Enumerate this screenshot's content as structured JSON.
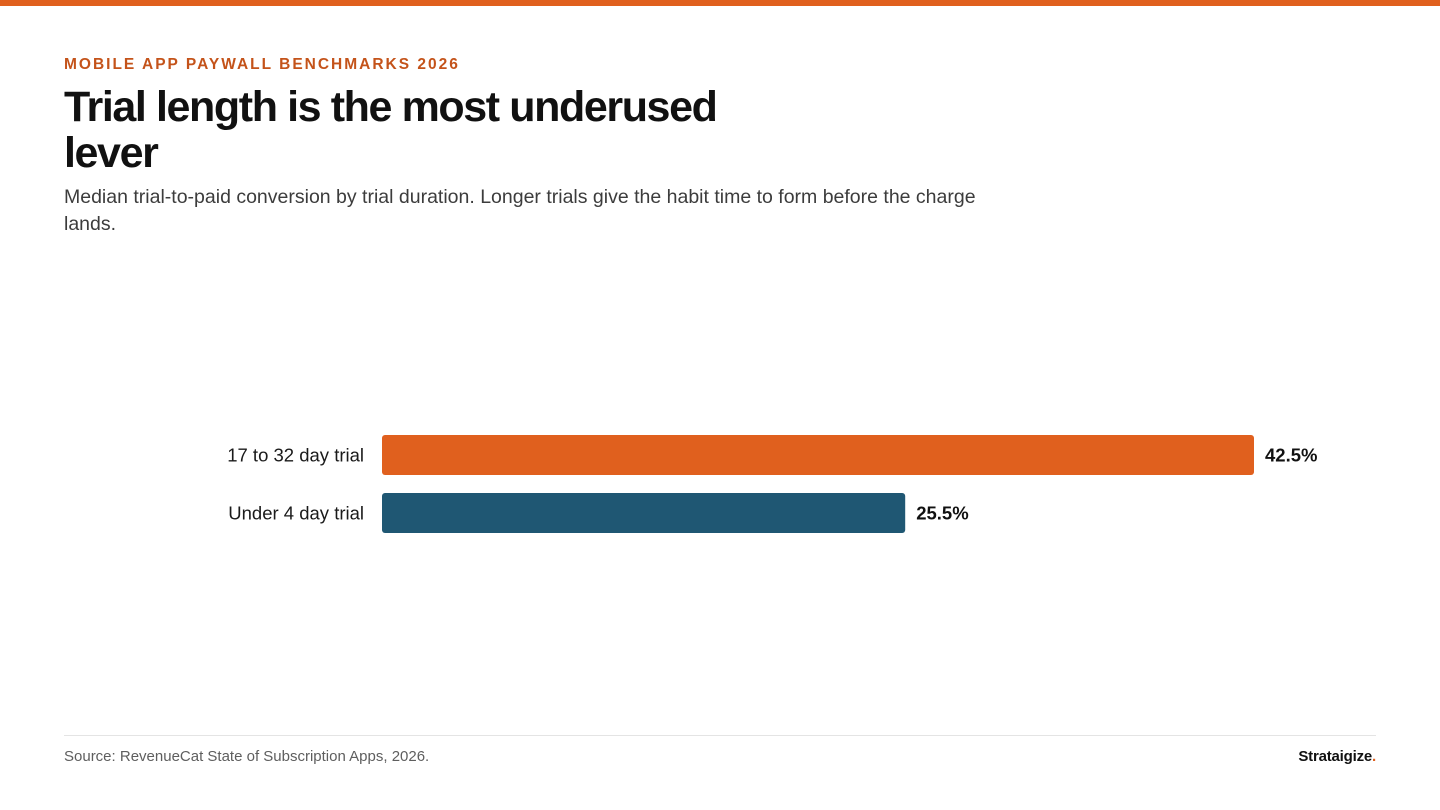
{
  "header": {
    "eyebrow": "MOBILE APP PAYWALL BENCHMARKS 2026",
    "title": "Trial length is the most underused lever",
    "subtitle": "Median trial-to-paid conversion by trial duration. Longer trials give the habit time to form before the charge lands."
  },
  "footer": {
    "source": "Source: RevenueCat State of Subscription Apps, 2026.",
    "brand": "Strataigize",
    "brand_dot": "."
  },
  "colors": {
    "accent": "#e0601e",
    "primary_bar": "#e0601e",
    "secondary_bar": "#1f5773"
  },
  "chart_data": {
    "type": "bar",
    "orientation": "horizontal",
    "categories": [
      "17 to 32 day trial",
      "Under 4 day trial"
    ],
    "values": [
      42.5,
      25.5
    ],
    "value_labels": [
      "42.5%",
      "25.5%"
    ],
    "colors": [
      "#e0601e",
      "#1f5773"
    ],
    "xlim": [
      0,
      42.5
    ],
    "grid": false,
    "legend": "none"
  }
}
